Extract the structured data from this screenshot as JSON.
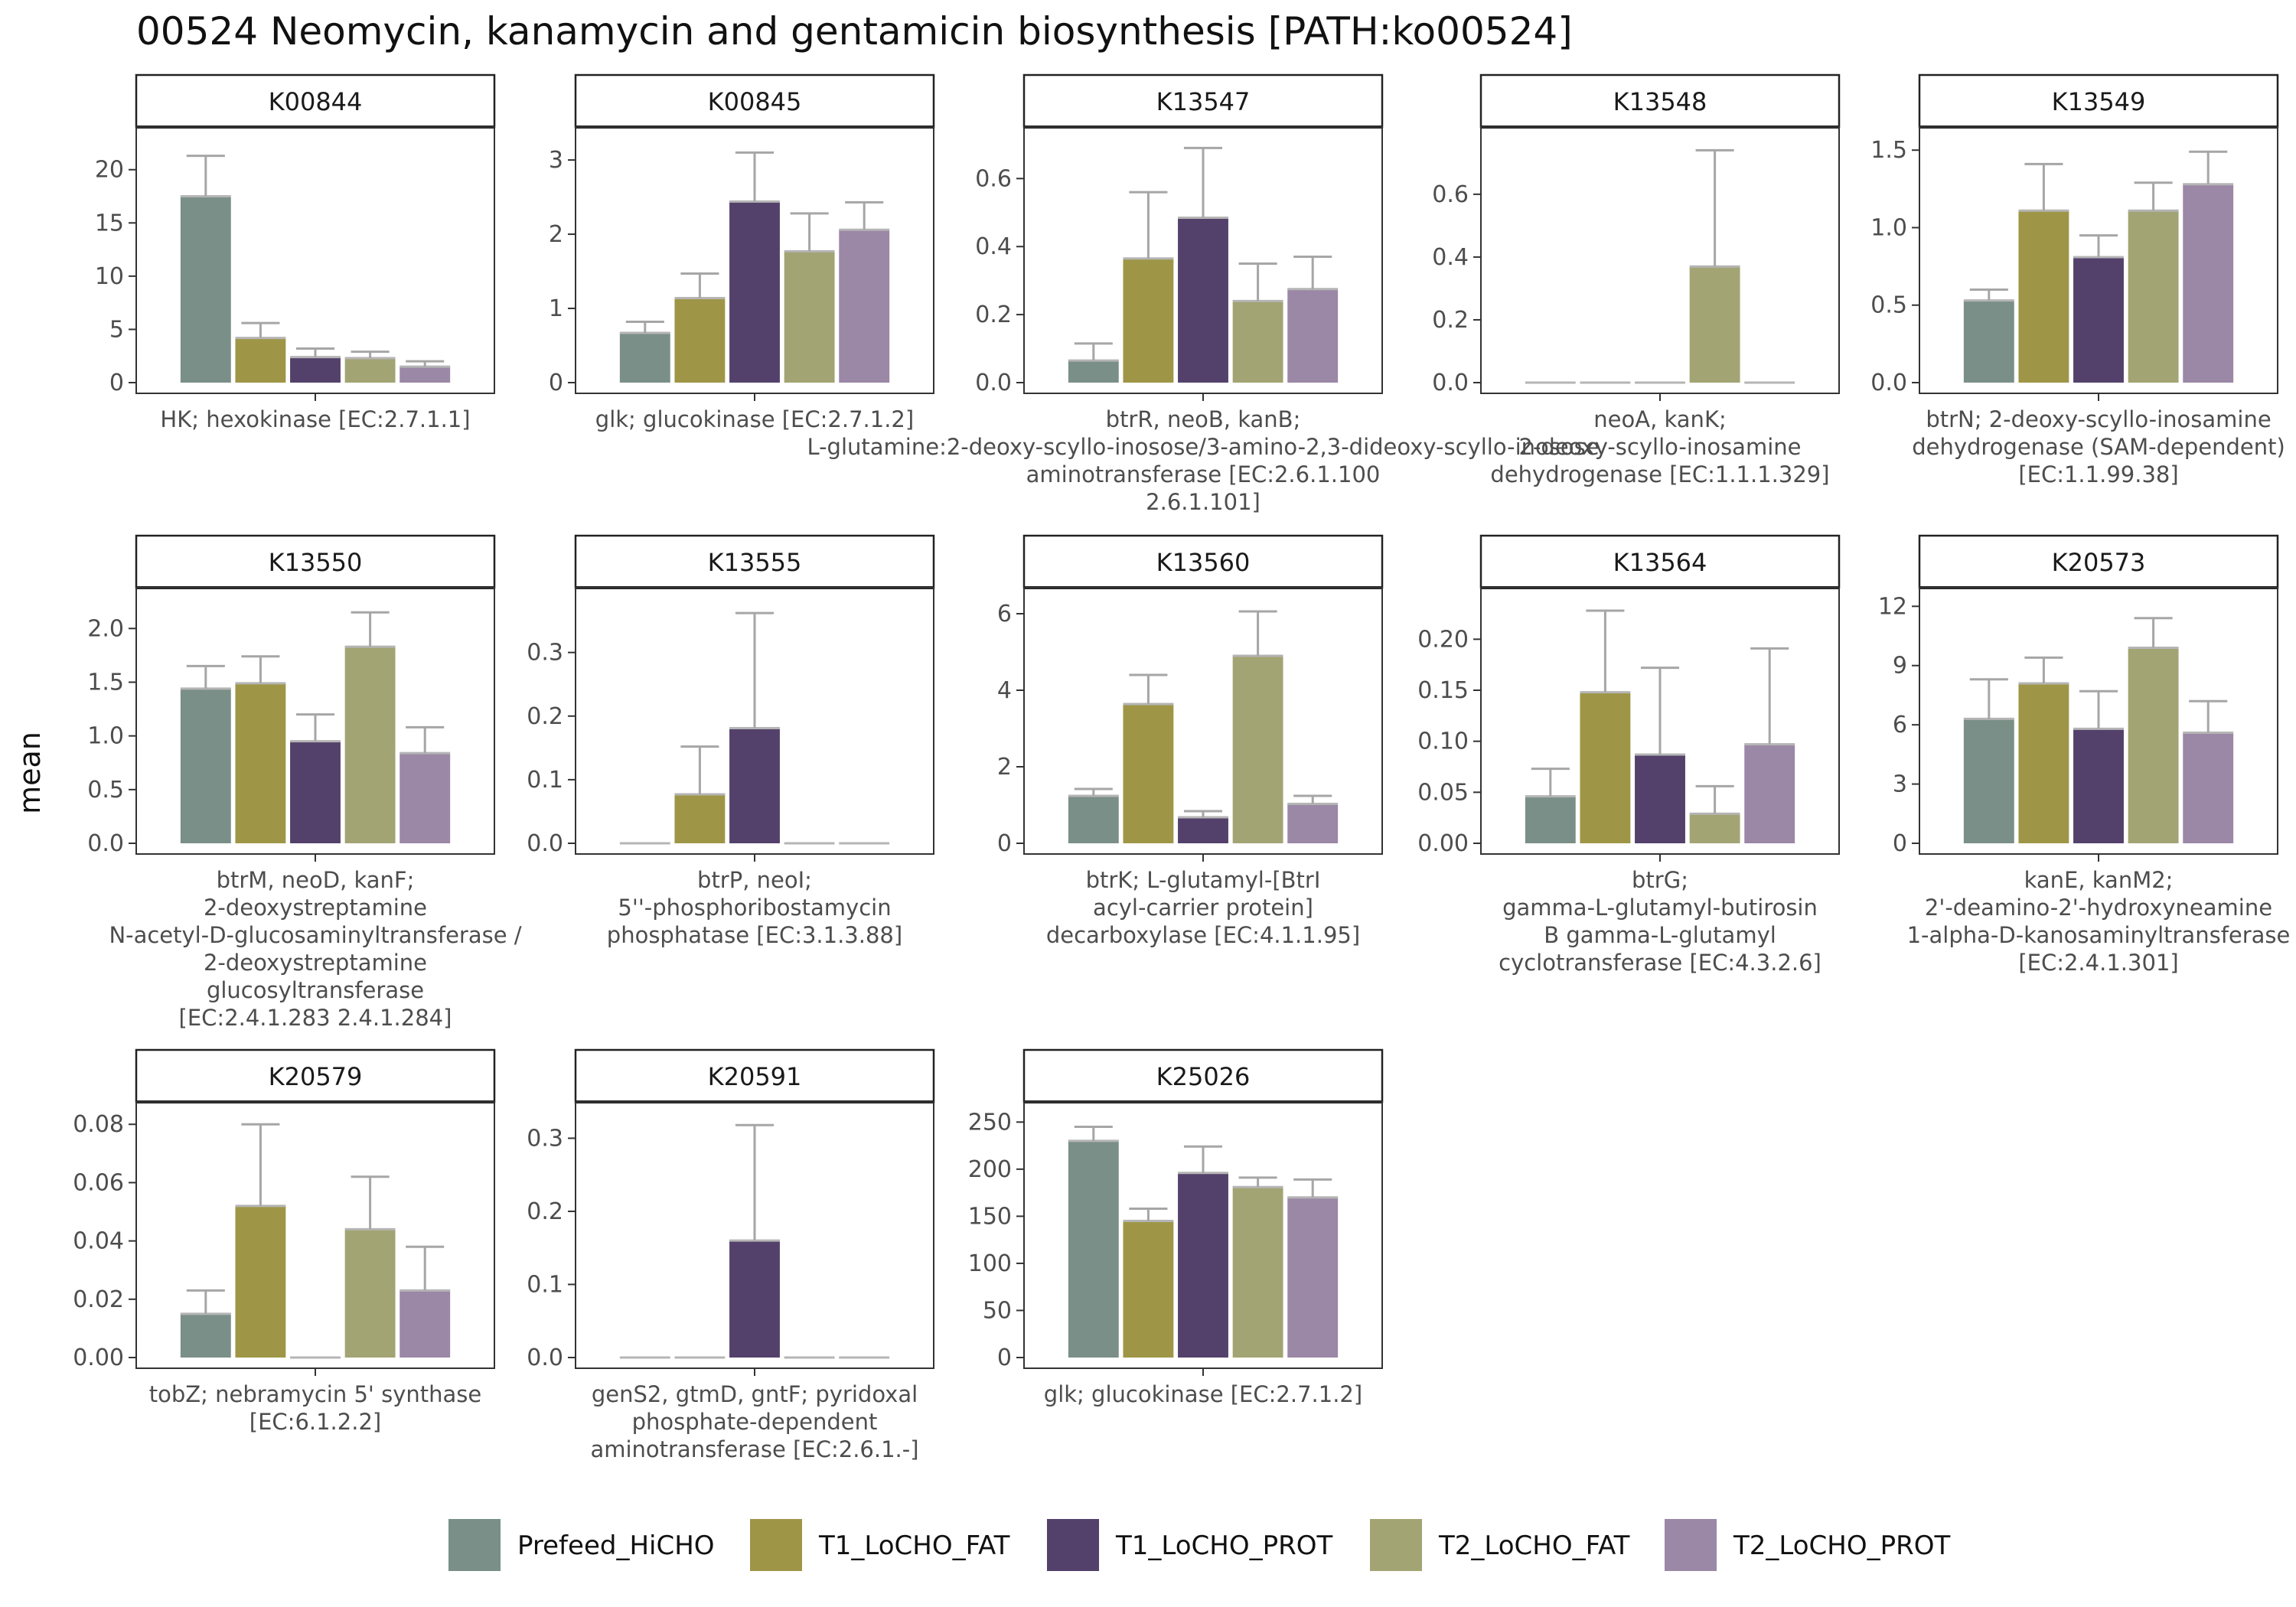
{
  "title": "00524 Neomycin, kanamycin and gentamicin biosynthesis [PATH:ko00524]",
  "ylabel": "mean",
  "chart_data": {
    "type": "bar",
    "title": "00524 Neomycin, kanamycin and gentamicin biosynthesis [PATH:ko00524]",
    "ylabel": "mean",
    "grid": false,
    "legend_position": "bottom",
    "groups": [
      "Prefeed_HiCHO",
      "T1_LoCHO_FAT",
      "T1_LoCHO_PROT",
      "T2_LoCHO_FAT",
      "T2_LoCHO_PROT"
    ],
    "colors": [
      "#7a8f87",
      "#9e9646",
      "#54416b",
      "#a2a473",
      "#9b87a6"
    ],
    "error_bar_color": "#a6a6a6",
    "panels": [
      {
        "id": "K00844",
        "caption": [
          "HK; hexokinase [EC:2.7.1.1]"
        ],
        "ylim": [
          0,
          23
        ],
        "ticks": [
          0,
          5,
          10,
          15,
          20
        ],
        "tick_labels": [
          "0",
          "5",
          "10",
          "15",
          "20"
        ],
        "values": [
          17.5,
          4.2,
          2.4,
          2.3,
          1.5
        ],
        "errors": [
          21.3,
          5.6,
          3.2,
          2.9,
          2.0
        ]
      },
      {
        "id": "K00845",
        "caption": [
          "glk; glucokinase [EC:2.7.1.2]"
        ],
        "ylim": [
          0,
          3.3
        ],
        "ticks": [
          0,
          1,
          2,
          3
        ],
        "tick_labels": [
          "0",
          "1",
          "2",
          "3"
        ],
        "values": [
          0.67,
          1.14,
          2.44,
          1.77,
          2.06
        ],
        "errors": [
          0.82,
          1.47,
          3.1,
          2.28,
          2.43
        ]
      },
      {
        "id": "K13547",
        "caption": [
          "btrR, neoB, kanB;",
          "L-glutamine:2-deoxy-scyllo-inosose/3-amino-2,3-dideoxy-scyllo-inosose",
          "aminotransferase [EC:2.6.1.100",
          "2.6.1.101]"
        ],
        "ylim": [
          0,
          0.72
        ],
        "ticks": [
          0,
          0.2,
          0.4,
          0.6
        ],
        "tick_labels": [
          "0.0",
          "0.2",
          "0.4",
          "0.6"
        ],
        "values": [
          0.065,
          0.365,
          0.485,
          0.24,
          0.275
        ],
        "errors": [
          0.115,
          0.56,
          0.69,
          0.35,
          0.37
        ]
      },
      {
        "id": "K13548",
        "caption": [
          "neoA, kanK;",
          "2-deoxy-scyllo-inosamine",
          "dehydrogenase [EC:1.1.1.329]"
        ],
        "ylim": [
          0,
          0.78
        ],
        "ticks": [
          0,
          0.2,
          0.4,
          0.6
        ],
        "tick_labels": [
          "0.0",
          "0.2",
          "0.4",
          "0.6"
        ],
        "values": [
          0,
          0,
          0,
          0.37,
          0
        ],
        "errors": [
          0,
          0,
          0,
          0.74,
          0
        ]
      },
      {
        "id": "K13549",
        "caption": [
          "btrN; 2-deoxy-scyllo-inosamine",
          "dehydrogenase (SAM-dependent)",
          "[EC:1.1.99.38]"
        ],
        "ylim": [
          0,
          1.58
        ],
        "ticks": [
          0,
          0.5,
          1.0,
          1.5
        ],
        "tick_labels": [
          "0.0",
          "0.5",
          "1.0",
          "1.5"
        ],
        "values": [
          0.53,
          1.11,
          0.81,
          1.11,
          1.28
        ],
        "errors": [
          0.6,
          1.41,
          0.95,
          1.29,
          1.49
        ]
      },
      {
        "id": "K13550",
        "caption": [
          "btrM, neoD, kanF;",
          "2-deoxystreptamine",
          "N-acetyl-D-glucosaminyltransferase /",
          "2-deoxystreptamine",
          "glucosyltransferase",
          "[EC:2.4.1.283 2.4.1.284]"
        ],
        "ylim": [
          0,
          2.28
        ],
        "ticks": [
          0,
          0.5,
          1.0,
          1.5,
          2.0
        ],
        "tick_labels": [
          "0.0",
          "0.5",
          "1.0",
          "1.5",
          "2.0"
        ],
        "values": [
          1.44,
          1.49,
          0.95,
          1.83,
          0.84
        ],
        "errors": [
          1.65,
          1.74,
          1.2,
          2.15,
          1.08
        ]
      },
      {
        "id": "K13555",
        "caption": [
          "btrP, neoI;",
          "5''-phosphoribostamycin",
          "phosphatase [EC:3.1.3.88]"
        ],
        "ylim": [
          0,
          0.385
        ],
        "ticks": [
          0,
          0.1,
          0.2,
          0.3
        ],
        "tick_labels": [
          "0.0",
          "0.1",
          "0.2",
          "0.3"
        ],
        "values": [
          0,
          0.077,
          0.181,
          0,
          0
        ],
        "errors": [
          0,
          0.152,
          0.362,
          0,
          0
        ]
      },
      {
        "id": "K13560",
        "caption": [
          "btrK; L-glutamyl-[BtrI",
          "acyl-carrier protein]",
          "decarboxylase [EC:4.1.1.95]"
        ],
        "ylim": [
          0,
          6.4
        ],
        "ticks": [
          0,
          2,
          4,
          6
        ],
        "tick_labels": [
          "0",
          "2",
          "4",
          "6"
        ],
        "values": [
          1.24,
          3.64,
          0.68,
          4.9,
          1.03
        ],
        "errors": [
          1.42,
          4.4,
          0.84,
          6.06,
          1.24
        ]
      },
      {
        "id": "K13564",
        "caption": [
          "btrG;",
          "gamma-L-glutamyl-butirosin",
          "B gamma-L-glutamyl",
          "cyclotransferase [EC:4.3.2.6]"
        ],
        "ylim": [
          0,
          0.24
        ],
        "ticks": [
          0,
          0.05,
          0.1,
          0.15,
          0.2
        ],
        "tick_labels": [
          "0.00",
          "0.05",
          "0.10",
          "0.15",
          "0.20"
        ],
        "values": [
          0.046,
          0.148,
          0.087,
          0.029,
          0.097
        ],
        "errors": [
          0.073,
          0.228,
          0.172,
          0.056,
          0.191
        ]
      },
      {
        "id": "K20573",
        "caption": [
          "kanE, kanM2;",
          "2'-deamino-2'-hydroxyneamine",
          "1-alpha-D-kanosaminyltransferase",
          "[EC:2.4.1.301]"
        ],
        "ylim": [
          0,
          12.4
        ],
        "ticks": [
          0,
          3,
          6,
          9,
          12
        ],
        "tick_labels": [
          "0",
          "3",
          "6",
          "9",
          "12"
        ],
        "values": [
          6.3,
          8.1,
          5.8,
          9.9,
          5.6
        ],
        "errors": [
          8.3,
          9.4,
          7.7,
          11.4,
          7.2
        ]
      },
      {
        "id": "K20579",
        "caption": [
          "tobZ; nebramycin 5' synthase",
          "[EC:6.1.2.2]"
        ],
        "ylim": [
          0,
          0.084
        ],
        "ticks": [
          0,
          0.02,
          0.04,
          0.06,
          0.08
        ],
        "tick_labels": [
          "0.00",
          "0.02",
          "0.04",
          "0.06",
          "0.08"
        ],
        "values": [
          0.015,
          0.052,
          0,
          0.044,
          0.023
        ],
        "errors": [
          0.023,
          0.08,
          0,
          0.062,
          0.038
        ]
      },
      {
        "id": "K20591",
        "caption": [
          "genS2, gtmD, gntF; pyridoxal",
          "phosphate-dependent",
          "aminotransferase [EC:2.6.1.-]"
        ],
        "ylim": [
          0,
          0.335
        ],
        "ticks": [
          0,
          0.1,
          0.2,
          0.3
        ],
        "tick_labels": [
          "0.0",
          "0.1",
          "0.2",
          "0.3"
        ],
        "values": [
          0,
          0,
          0.16,
          0,
          0
        ],
        "errors": [
          0,
          0,
          0.318,
          0,
          0
        ]
      },
      {
        "id": "K25026",
        "caption": [
          "glk; glucokinase [EC:2.7.1.2]"
        ],
        "ylim": [
          0,
          260
        ],
        "ticks": [
          0,
          50,
          100,
          150,
          200,
          250
        ],
        "tick_labels": [
          "0",
          "50",
          "100",
          "150",
          "200",
          "250"
        ],
        "values": [
          230,
          145,
          196,
          181,
          170
        ],
        "errors": [
          245,
          158,
          224,
          191,
          189
        ]
      }
    ]
  }
}
